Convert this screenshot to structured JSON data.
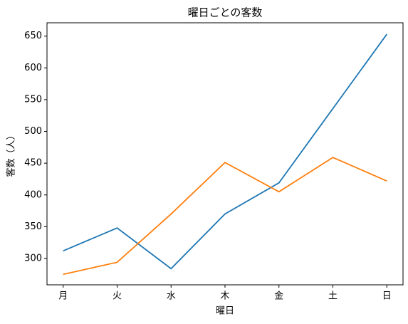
{
  "chart_data": {
    "type": "line",
    "title": "曜日ごとの客数",
    "x_label": "曜日",
    "y_label": "客数（人）",
    "categories": [
      "月",
      "火",
      "水",
      "木",
      "金",
      "土",
      "日"
    ],
    "series": [
      {
        "color": "#1f77b4",
        "values": [
          312,
          348,
          284,
          370,
          419,
          536,
          653
        ]
      },
      {
        "color": "#ff7f0e",
        "values": [
          275,
          294,
          370,
          451,
          405,
          459,
          422
        ]
      }
    ],
    "ylim": [
      258.5,
      671
    ],
    "yticks": [
      300,
      350,
      400,
      450,
      500,
      550,
      600,
      650
    ],
    "grid": false
  }
}
